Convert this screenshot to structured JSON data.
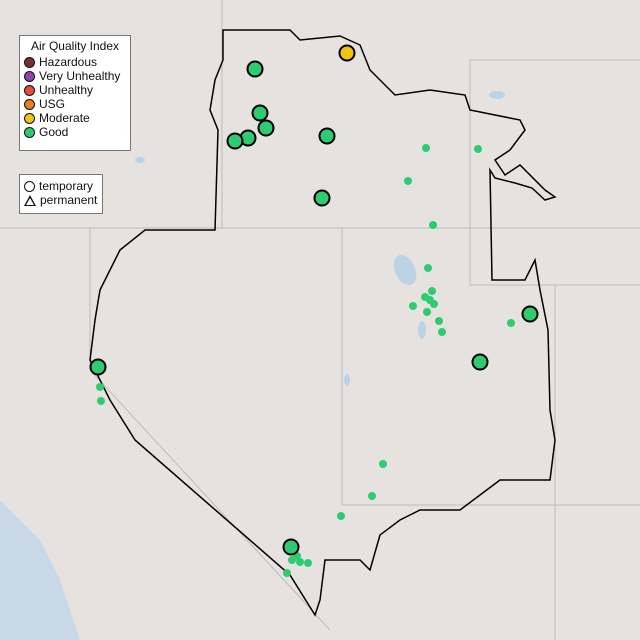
{
  "legend_aqi": {
    "title": "Air Quality Index",
    "items": [
      {
        "label": "Hazardous",
        "color": "#7e2e2e"
      },
      {
        "label": "Very Unhealthy",
        "color": "#8e44ad"
      },
      {
        "label": "Unhealthy",
        "color": "#e74c3c"
      },
      {
        "label": "USG",
        "color": "#e67e22"
      },
      {
        "label": "Moderate",
        "color": "#f1c40f"
      },
      {
        "label": "Good",
        "color": "#2ecc71"
      }
    ]
  },
  "legend_type": {
    "items": [
      {
        "label": "temporary",
        "icon": "circle-icon"
      },
      {
        "label": "permanent",
        "icon": "triangle-icon"
      }
    ]
  },
  "monitors": {
    "temporary": [
      {
        "category": "Moderate"
      },
      {
        "category": "Good"
      },
      {
        "category": "Good"
      },
      {
        "category": "Good"
      },
      {
        "category": "Good"
      },
      {
        "category": "Good"
      },
      {
        "category": "Good"
      },
      {
        "category": "Good"
      },
      {
        "category": "Good"
      },
      {
        "category": "Good"
      },
      {
        "category": "Good"
      },
      {
        "category": "Good"
      }
    ],
    "permanent_category": "Good"
  }
}
